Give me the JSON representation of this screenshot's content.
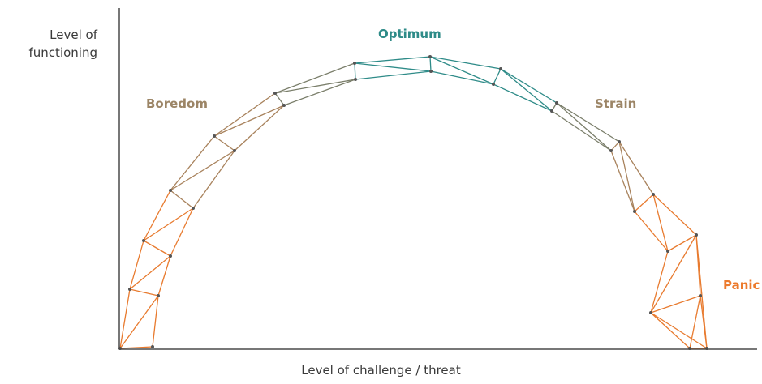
{
  "axes": {
    "y_label": "Level of functioning",
    "x_label": "Level of challenge / threat"
  },
  "zones": [
    {
      "label": "Optimum",
      "color": "#2e8b88"
    },
    {
      "label": "Boredom",
      "color": "#9c8566"
    },
    {
      "label": "Strain",
      "color": "#9c8566"
    },
    {
      "label": "Panic",
      "color": "#ec7a2c"
    }
  ],
  "colors": {
    "axis": "#4a4a4a",
    "line_teal": "#2e8b88",
    "line_olive": "#7a7e6a",
    "line_brown": "#a8825c",
    "line_orange": "#e87a2e",
    "node": "#555555"
  }
}
